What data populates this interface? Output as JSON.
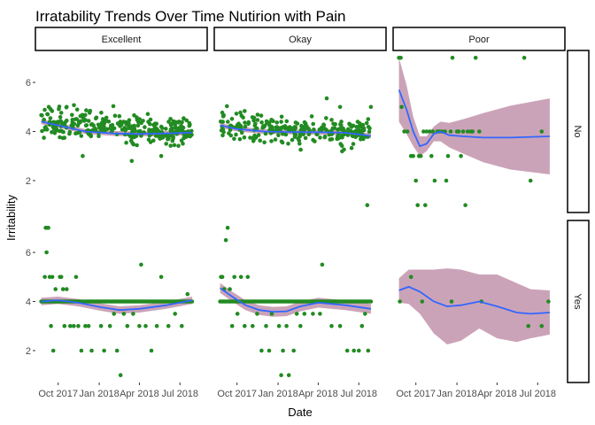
{
  "chart_data": {
    "type": "scatter",
    "title": "Irratability Trends Over Time Nutirion with Pain",
    "xlabel": "Date",
    "ylabel": "Irritability",
    "facet_columns": [
      "Excellent",
      "Okay",
      "Poor"
    ],
    "facet_rows": [
      "No",
      "Yes"
    ],
    "x_ticks": [
      "Oct 2017",
      "Jan 2018",
      "Apr 2018",
      "Jul 2018"
    ],
    "x_tick_dates": [
      "2017-10-01",
      "2018-01-01",
      "2018-04-01",
      "2018-07-01"
    ],
    "xlim": [
      "2017-08-11",
      "2018-08-31"
    ],
    "y_ticks": [
      2,
      4,
      6
    ],
    "ylim": [
      0.7,
      7.3
    ],
    "colors": {
      "points": "#228B22",
      "smooth_line": "#3366FF",
      "ribbon": "#C08FA8",
      "strip_border": "#000000",
      "text": "#000000",
      "tick_text": "#4D4D4D"
    },
    "panels": [
      {
        "col": "Excellent",
        "row": "No",
        "date_range": [
          "2017-08-24",
          "2018-07-28"
        ],
        "point_count": 300,
        "y_mean_start": 4.4,
        "y_mean_end": 3.95,
        "y_sd": 0.28,
        "extra_points": [
          {
            "x": "2017-09-10",
            "y": 5.0
          },
          {
            "x": "2017-10-20",
            "y": 5.0
          },
          {
            "x": "2017-11-25",
            "y": 3.0
          },
          {
            "x": "2018-03-15",
            "y": 2.8
          },
          {
            "x": "2018-05-20",
            "y": 3.0
          }
        ],
        "smooth": [
          {
            "x": "2017-08-24",
            "y": 4.4
          },
          {
            "x": "2017-10-01",
            "y": 4.25
          },
          {
            "x": "2017-12-01",
            "y": 4.0
          },
          {
            "x": "2018-02-01",
            "y": 3.92
          },
          {
            "x": "2018-04-01",
            "y": 3.9
          },
          {
            "x": "2018-06-01",
            "y": 3.92
          },
          {
            "x": "2018-07-28",
            "y": 3.95
          }
        ],
        "band": 0.1
      },
      {
        "col": "Okay",
        "row": "No",
        "date_range": [
          "2017-08-24",
          "2018-07-28"
        ],
        "point_count": 260,
        "y_mean_start": 4.2,
        "y_mean_end": 3.9,
        "y_sd": 0.3,
        "extra_points": [
          {
            "x": "2018-04-20",
            "y": 5.35
          },
          {
            "x": "2018-05-20",
            "y": 5.0
          },
          {
            "x": "2018-07-20",
            "y": 1.0
          },
          {
            "x": "2018-07-28",
            "y": 5.0
          }
        ],
        "smooth": [
          {
            "x": "2017-08-24",
            "y": 4.25
          },
          {
            "x": "2017-10-01",
            "y": 4.1
          },
          {
            "x": "2017-12-01",
            "y": 4.0
          },
          {
            "x": "2018-02-01",
            "y": 3.98
          },
          {
            "x": "2018-04-01",
            "y": 3.97
          },
          {
            "x": "2018-06-01",
            "y": 3.95
          },
          {
            "x": "2018-07-28",
            "y": 3.82
          }
        ],
        "band": 0.1
      },
      {
        "col": "Poor",
        "row": "No",
        "date_range": [
          "2017-08-24",
          "2018-07-28"
        ],
        "points": [
          {
            "x": "2017-08-24",
            "y": 7
          },
          {
            "x": "2017-08-28",
            "y": 7
          },
          {
            "x": "2017-08-30",
            "y": 5
          },
          {
            "x": "2017-09-05",
            "y": 4
          },
          {
            "x": "2017-09-12",
            "y": 4
          },
          {
            "x": "2017-09-20",
            "y": 3
          },
          {
            "x": "2017-09-25",
            "y": 3
          },
          {
            "x": "2017-10-01",
            "y": 2
          },
          {
            "x": "2017-10-05",
            "y": 1
          },
          {
            "x": "2017-10-08",
            "y": 3
          },
          {
            "x": "2017-10-12",
            "y": 3
          },
          {
            "x": "2017-10-18",
            "y": 4
          },
          {
            "x": "2017-10-22",
            "y": 1
          },
          {
            "x": "2017-10-25",
            "y": 4
          },
          {
            "x": "2017-11-01",
            "y": 4
          },
          {
            "x": "2017-11-05",
            "y": 3
          },
          {
            "x": "2017-11-08",
            "y": 4
          },
          {
            "x": "2017-11-12",
            "y": 2
          },
          {
            "x": "2017-11-18",
            "y": 4
          },
          {
            "x": "2017-11-22",
            "y": 4
          },
          {
            "x": "2017-11-28",
            "y": 4
          },
          {
            "x": "2017-12-05",
            "y": 4
          },
          {
            "x": "2017-12-08",
            "y": 2
          },
          {
            "x": "2017-12-12",
            "y": 3
          },
          {
            "x": "2017-12-18",
            "y": 4
          },
          {
            "x": "2017-12-22",
            "y": 7
          },
          {
            "x": "2018-01-01",
            "y": 4
          },
          {
            "x": "2018-01-05",
            "y": 4
          },
          {
            "x": "2018-01-10",
            "y": 3
          },
          {
            "x": "2018-01-15",
            "y": 4
          },
          {
            "x": "2018-01-20",
            "y": 1
          },
          {
            "x": "2018-01-25",
            "y": 4
          },
          {
            "x": "2018-02-01",
            "y": 4
          },
          {
            "x": "2018-02-05",
            "y": 4
          },
          {
            "x": "2018-02-12",
            "y": 7
          },
          {
            "x": "2018-02-20",
            "y": 4
          },
          {
            "x": "2018-06-01",
            "y": 7
          },
          {
            "x": "2018-06-15",
            "y": 2
          },
          {
            "x": "2018-07-10",
            "y": 4
          }
        ],
        "smooth": [
          {
            "x": "2017-08-24",
            "y": 5.7
          },
          {
            "x": "2017-09-10",
            "y": 4.9
          },
          {
            "x": "2017-09-25",
            "y": 4.0
          },
          {
            "x": "2017-10-10",
            "y": 3.4
          },
          {
            "x": "2017-10-25",
            "y": 3.5
          },
          {
            "x": "2017-11-10",
            "y": 3.9
          },
          {
            "x": "2017-11-25",
            "y": 4.0
          },
          {
            "x": "2017-12-15",
            "y": 3.85
          },
          {
            "x": "2018-01-15",
            "y": 3.8
          },
          {
            "x": "2018-03-01",
            "y": 3.75
          },
          {
            "x": "2018-05-01",
            "y": 3.75
          },
          {
            "x": "2018-07-28",
            "y": 3.8
          }
        ],
        "band_widths": [
          1.3,
          1.0,
          0.6,
          0.4,
          0.3,
          0.3,
          0.4,
          0.5,
          0.7,
          1.0,
          1.3,
          1.55
        ]
      },
      {
        "col": "Excellent",
        "row": "Yes",
        "date_range": [
          "2017-08-24",
          "2018-07-28"
        ],
        "points": [
          {
            "x": "2017-09-01",
            "y": 5
          },
          {
            "x": "2017-09-03",
            "y": 7
          },
          {
            "x": "2017-09-05",
            "y": 6
          },
          {
            "x": "2017-09-06",
            "y": 7
          },
          {
            "x": "2017-09-09",
            "y": 7
          },
          {
            "x": "2017-09-12",
            "y": 5
          },
          {
            "x": "2017-09-15",
            "y": 3
          },
          {
            "x": "2017-09-18",
            "y": 5
          },
          {
            "x": "2017-09-20",
            "y": 2
          },
          {
            "x": "2017-09-25",
            "y": 4.5
          },
          {
            "x": "2017-10-05",
            "y": 5
          },
          {
            "x": "2017-10-08",
            "y": 5
          },
          {
            "x": "2017-10-12",
            "y": 4.5
          },
          {
            "x": "2017-10-15",
            "y": 3
          },
          {
            "x": "2017-10-20",
            "y": 4.5
          },
          {
            "x": "2017-10-28",
            "y": 3
          },
          {
            "x": "2017-11-05",
            "y": 3
          },
          {
            "x": "2017-11-10",
            "y": 5
          },
          {
            "x": "2017-11-15",
            "y": 3
          },
          {
            "x": "2017-11-22",
            "y": 2
          },
          {
            "x": "2017-12-01",
            "y": 3
          },
          {
            "x": "2017-12-08",
            "y": 3
          },
          {
            "x": "2017-12-15",
            "y": 2
          },
          {
            "x": "2018-01-05",
            "y": 3
          },
          {
            "x": "2018-01-12",
            "y": 2
          },
          {
            "x": "2018-01-25",
            "y": 3
          },
          {
            "x": "2018-02-03",
            "y": 3.5
          },
          {
            "x": "2018-02-10",
            "y": 2
          },
          {
            "x": "2018-02-18",
            "y": 1
          },
          {
            "x": "2018-02-25",
            "y": 3.5
          },
          {
            "x": "2018-03-05",
            "y": 3
          },
          {
            "x": "2018-03-18",
            "y": 3.5
          },
          {
            "x": "2018-04-01",
            "y": 3
          },
          {
            "x": "2018-04-05",
            "y": 5.5
          },
          {
            "x": "2018-04-15",
            "y": 3
          },
          {
            "x": "2018-04-28",
            "y": 2
          },
          {
            "x": "2018-05-10",
            "y": 3
          },
          {
            "x": "2018-05-20",
            "y": 5
          },
          {
            "x": "2018-06-05",
            "y": 3
          },
          {
            "x": "2018-06-20",
            "y": 3.5
          },
          {
            "x": "2018-07-05",
            "y": 3
          },
          {
            "x": "2018-07-18",
            "y": 4.3
          }
        ],
        "baseline": {
          "y": 4,
          "count": 110
        },
        "smooth": [
          {
            "x": "2017-08-24",
            "y": 4.0
          },
          {
            "x": "2017-10-01",
            "y": 4.05
          },
          {
            "x": "2017-11-15",
            "y": 3.95
          },
          {
            "x": "2018-01-01",
            "y": 3.78
          },
          {
            "x": "2018-02-15",
            "y": 3.65
          },
          {
            "x": "2018-04-01",
            "y": 3.7
          },
          {
            "x": "2018-06-01",
            "y": 3.85
          },
          {
            "x": "2018-07-28",
            "y": 4.05
          }
        ],
        "band": 0.15
      },
      {
        "col": "Okay",
        "row": "Yes",
        "date_range": [
          "2017-08-24",
          "2018-07-28"
        ],
        "points": [
          {
            "x": "2017-08-26",
            "y": 5
          },
          {
            "x": "2017-08-29",
            "y": 5
          },
          {
            "x": "2017-09-02",
            "y": 4.5
          },
          {
            "x": "2017-09-06",
            "y": 6.5
          },
          {
            "x": "2017-09-10",
            "y": 7
          },
          {
            "x": "2017-09-15",
            "y": 4.5
          },
          {
            "x": "2017-09-20",
            "y": 3
          },
          {
            "x": "2017-09-25",
            "y": 5
          },
          {
            "x": "2017-10-02",
            "y": 3.5
          },
          {
            "x": "2017-10-10",
            "y": 5
          },
          {
            "x": "2017-10-18",
            "y": 3
          },
          {
            "x": "2017-10-25",
            "y": 5
          },
          {
            "x": "2017-11-05",
            "y": 3
          },
          {
            "x": "2017-11-15",
            "y": 3.5
          },
          {
            "x": "2017-11-25",
            "y": 2
          },
          {
            "x": "2017-12-05",
            "y": 3
          },
          {
            "x": "2017-12-12",
            "y": 2
          },
          {
            "x": "2017-12-18",
            "y": 3.5
          },
          {
            "x": "2018-01-03",
            "y": 3
          },
          {
            "x": "2018-01-08",
            "y": 1
          },
          {
            "x": "2018-01-12",
            "y": 2
          },
          {
            "x": "2018-01-20",
            "y": 3
          },
          {
            "x": "2018-01-25",
            "y": 1
          },
          {
            "x": "2018-02-05",
            "y": 2
          },
          {
            "x": "2018-02-12",
            "y": 3.5
          },
          {
            "x": "2018-02-20",
            "y": 3
          },
          {
            "x": "2018-03-01",
            "y": 3.5
          },
          {
            "x": "2018-03-20",
            "y": 3.5
          },
          {
            "x": "2018-04-05",
            "y": 3.5
          },
          {
            "x": "2018-04-10",
            "y": 5.5
          },
          {
            "x": "2018-05-01",
            "y": 3
          },
          {
            "x": "2018-05-20",
            "y": 3
          },
          {
            "x": "2018-06-05",
            "y": 2
          },
          {
            "x": "2018-06-20",
            "y": 2
          },
          {
            "x": "2018-07-01",
            "y": 2
          },
          {
            "x": "2018-07-08",
            "y": 3
          },
          {
            "x": "2018-07-15",
            "y": 3.5
          },
          {
            "x": "2018-07-22",
            "y": 2
          }
        ],
        "baseline": {
          "y": 4,
          "count": 100
        },
        "smooth": [
          {
            "x": "2017-08-24",
            "y": 4.55
          },
          {
            "x": "2017-09-20",
            "y": 4.2
          },
          {
            "x": "2017-10-20",
            "y": 3.85
          },
          {
            "x": "2017-11-20",
            "y": 3.65
          },
          {
            "x": "2017-12-20",
            "y": 3.58
          },
          {
            "x": "2018-01-20",
            "y": 3.6
          },
          {
            "x": "2018-02-20",
            "y": 3.8
          },
          {
            "x": "2018-04-01",
            "y": 3.95
          },
          {
            "x": "2018-06-01",
            "y": 3.85
          },
          {
            "x": "2018-07-28",
            "y": 3.7
          }
        ],
        "band": 0.2
      },
      {
        "col": "Poor",
        "row": "Yes",
        "date_range": [
          "2017-08-24",
          "2018-07-28"
        ],
        "points": [
          {
            "x": "2017-08-26",
            "y": 4
          },
          {
            "x": "2017-09-20",
            "y": 5
          },
          {
            "x": "2017-10-15",
            "y": 4
          },
          {
            "x": "2017-12-20",
            "y": 4
          },
          {
            "x": "2018-02-25",
            "y": 4
          },
          {
            "x": "2018-06-10",
            "y": 3
          },
          {
            "x": "2018-07-10",
            "y": 3
          },
          {
            "x": "2018-07-25",
            "y": 4
          }
        ],
        "smooth": [
          {
            "x": "2017-08-24",
            "y": 4.45
          },
          {
            "x": "2017-09-15",
            "y": 4.6
          },
          {
            "x": "2017-10-10",
            "y": 4.4
          },
          {
            "x": "2017-11-10",
            "y": 4.0
          },
          {
            "x": "2017-12-10",
            "y": 3.8
          },
          {
            "x": "2018-01-10",
            "y": 3.85
          },
          {
            "x": "2018-02-20",
            "y": 4.0
          },
          {
            "x": "2018-04-01",
            "y": 3.8
          },
          {
            "x": "2018-05-15",
            "y": 3.55
          },
          {
            "x": "2018-06-15",
            "y": 3.5
          },
          {
            "x": "2018-07-28",
            "y": 3.55
          }
        ],
        "band_widths": [
          0.5,
          0.7,
          0.9,
          1.3,
          1.55,
          1.45,
          1.1,
          1.3,
          1.2,
          1.0,
          0.9
        ]
      }
    ]
  }
}
